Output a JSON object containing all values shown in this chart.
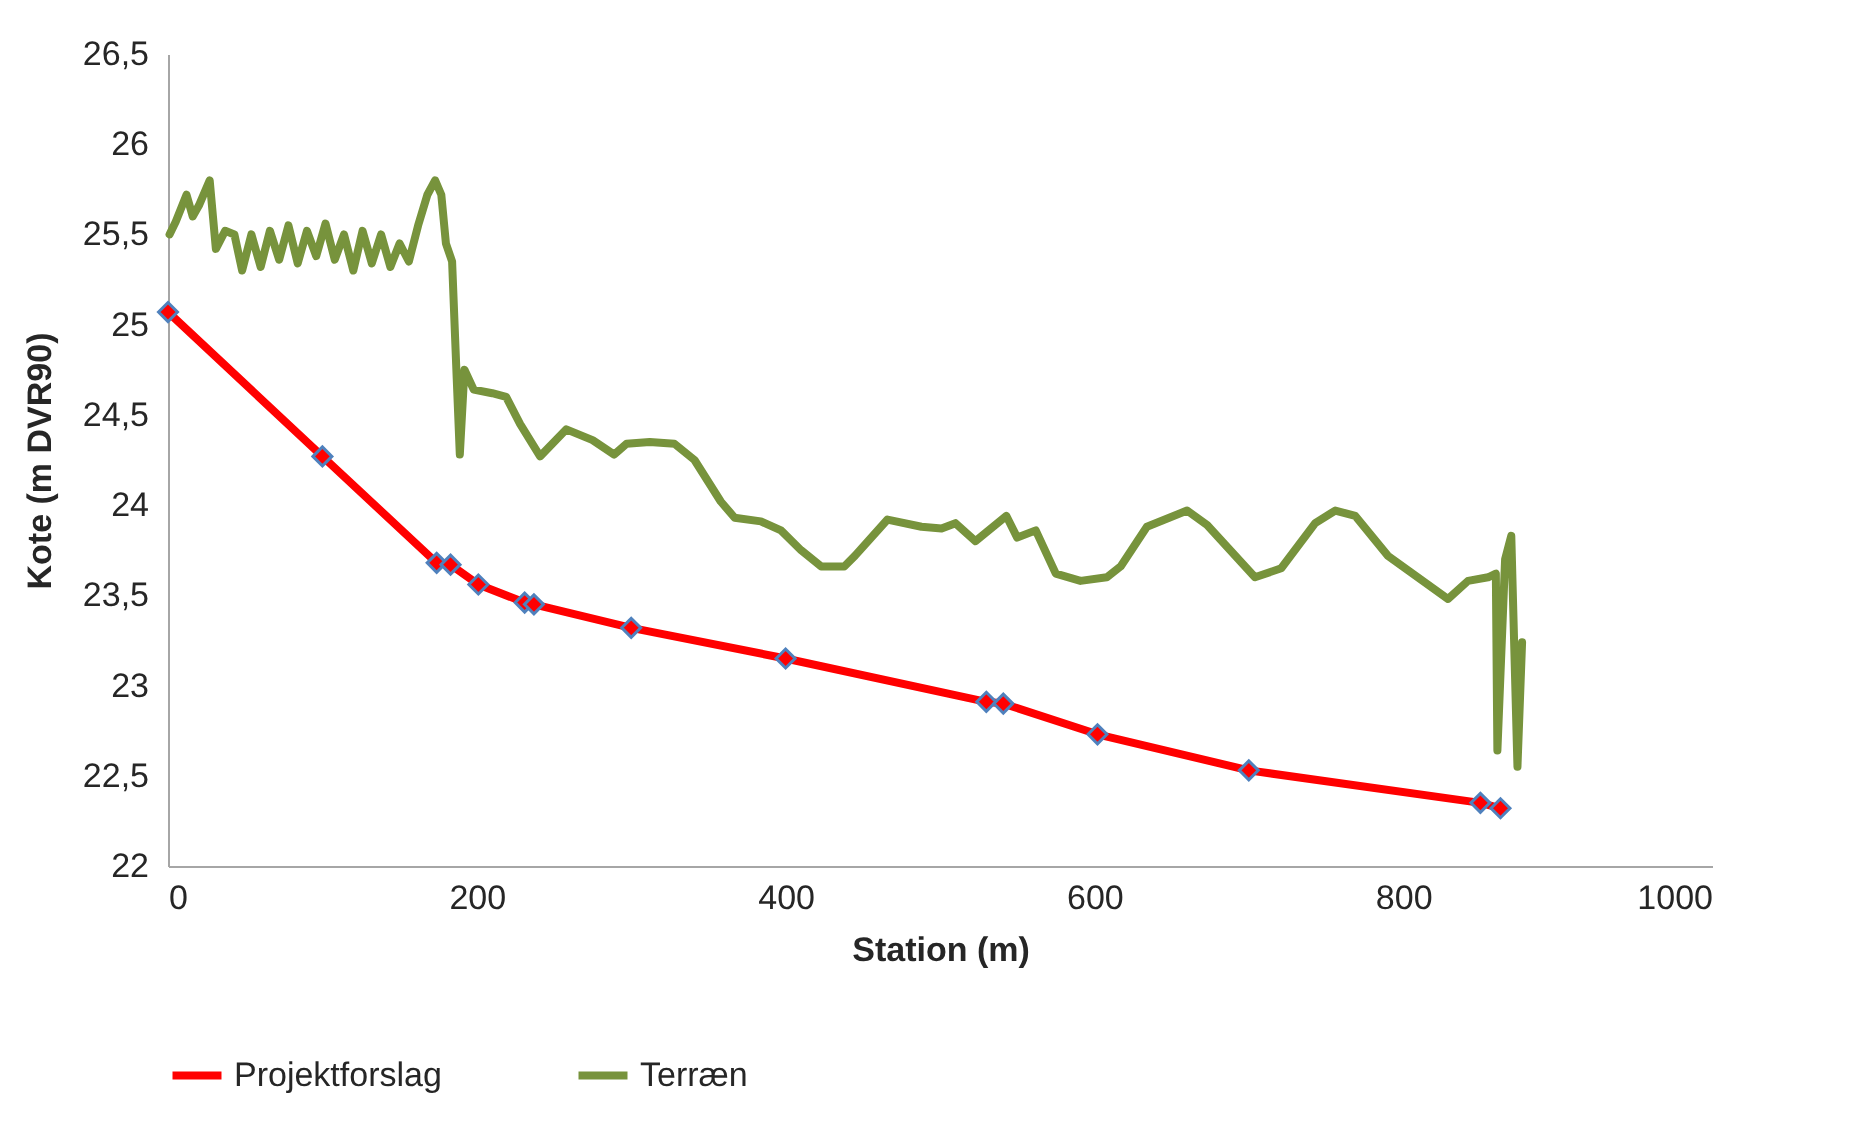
{
  "chart_data": {
    "type": "line",
    "xlabel": "Station (m)",
    "ylabel": "Kote (m DVR90)",
    "xlim": [
      0,
      1000
    ],
    "xticks": [
      0,
      200,
      400,
      600,
      800,
      1000
    ],
    "ylim": [
      22,
      26.5
    ],
    "yticks": [
      {
        "value": 22,
        "label": "22"
      },
      {
        "value": 22.5,
        "label": "22,5"
      },
      {
        "value": 23,
        "label": "23"
      },
      {
        "value": 23.5,
        "label": "23,5"
      },
      {
        "value": 24,
        "label": "24"
      },
      {
        "value": 24.5,
        "label": "24,5"
      },
      {
        "value": 25,
        "label": "25"
      },
      {
        "value": 25.5,
        "label": "25,5"
      },
      {
        "value": 26,
        "label": "26"
      },
      {
        "value": 26.5,
        "label": "26,5"
      }
    ],
    "grid": false,
    "legend": "bottom",
    "line_style": "solid",
    "series": [
      {
        "name": "Projektforslag",
        "color": "#ff0000",
        "marker": "diamond",
        "x": [
          0,
          100,
          174,
          183,
          201,
          231,
          237,
          300,
          400,
          530,
          541,
          602,
          700,
          850,
          863
        ],
        "values": [
          25.07,
          24.27,
          23.68,
          23.67,
          23.56,
          23.46,
          23.45,
          23.32,
          23.15,
          22.91,
          22.9,
          22.73,
          22.53,
          22.35,
          22.32
        ]
      },
      {
        "name": "Terræn",
        "color": "#77933c",
        "marker": "none",
        "x": [
          1,
          5,
          12,
          16,
          20,
          27,
          31,
          37,
          43,
          48,
          54,
          60,
          66,
          72,
          78,
          84,
          90,
          96,
          102,
          108,
          114,
          120,
          126,
          132,
          138,
          144,
          150,
          156,
          162,
          168,
          173,
          177,
          180,
          184,
          187,
          189,
          192,
          198,
          210,
          219,
          228,
          241,
          258,
          275,
          289,
          297,
          312,
          328,
          341,
          358,
          367,
          384,
          397,
          410,
          423,
          438,
          445,
          466,
          488,
          501,
          510,
          523,
          543,
          550,
          562,
          575,
          591,
          608,
          617,
          634,
          660,
          673,
          704,
          721,
          743,
          756,
          769,
          790,
          829,
          842,
          855,
          860,
          861,
          866,
          870,
          874,
          877
        ],
        "values": [
          25.5,
          25.57,
          25.72,
          25.6,
          25.66,
          25.8,
          25.42,
          25.52,
          25.5,
          25.3,
          25.5,
          25.32,
          25.52,
          25.36,
          25.55,
          25.34,
          25.52,
          25.38,
          25.56,
          25.36,
          25.5,
          25.3,
          25.52,
          25.34,
          25.5,
          25.32,
          25.45,
          25.35,
          25.55,
          25.72,
          25.8,
          25.72,
          25.45,
          25.35,
          24.7,
          24.28,
          24.75,
          24.64,
          24.62,
          24.6,
          24.45,
          24.27,
          24.42,
          24.36,
          24.28,
          24.34,
          24.35,
          24.34,
          24.25,
          24.02,
          23.93,
          23.91,
          23.86,
          23.75,
          23.66,
          23.66,
          23.72,
          23.92,
          23.88,
          23.87,
          23.9,
          23.8,
          23.94,
          23.82,
          23.86,
          23.62,
          23.58,
          23.6,
          23.66,
          23.88,
          23.97,
          23.89,
          23.6,
          23.65,
          23.9,
          23.97,
          23.94,
          23.72,
          23.48,
          23.58,
          23.6,
          23.62,
          22.64,
          23.7,
          23.83,
          22.55,
          23.24
        ]
      }
    ]
  }
}
